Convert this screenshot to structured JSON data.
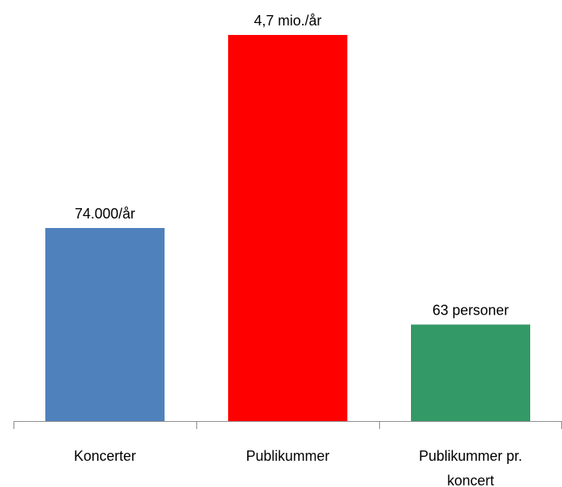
{
  "chart_data": {
    "type": "bar",
    "title": "",
    "xlabel": "",
    "ylabel": "",
    "grid": false,
    "legend": "none",
    "y_axis_shown": false,
    "categories": [
      [
        "Koncerter"
      ],
      [
        "Publikummer"
      ],
      [
        "Publikummer pr.",
        "koncert"
      ]
    ],
    "values": [
      0.5,
      1.0,
      0.25
    ],
    "value_note": "Relative bar heights on an unlabeled axis; the bars show different quantities.",
    "data_labels": [
      "74.000/år",
      "4,7 mio./år",
      "63 personer"
    ],
    "colors": [
      "#4f81bd",
      "#ff0000",
      "#339966"
    ]
  }
}
